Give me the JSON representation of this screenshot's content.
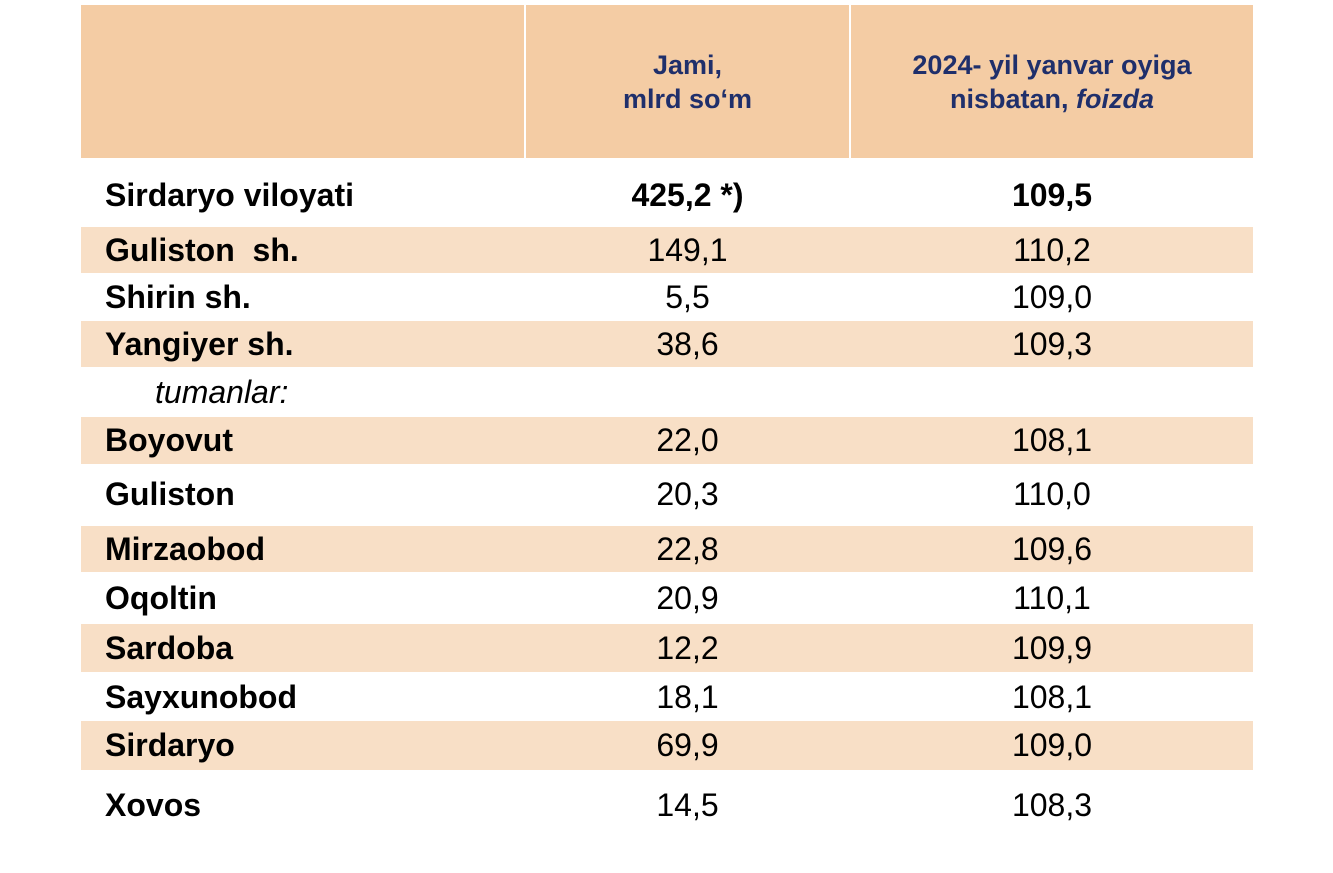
{
  "header": {
    "col_region": "",
    "col_total_line1": "Jami,",
    "col_total_line2": "mlrd so‘m",
    "col_percent_line1": "2024- yil yanvar oyiga",
    "col_percent_line2_plain": "nisbatan, ",
    "col_percent_line2_italic": "foizda"
  },
  "rows": [
    {
      "name": "Sirdaryo viloyati",
      "total": "425,2 *)",
      "percent": "109,5"
    },
    {
      "name": "Guliston  sh.",
      "total": "149,1",
      "percent": "110,2"
    },
    {
      "name": "Shirin sh.",
      "total": "5,5",
      "percent": "109,0"
    },
    {
      "name": "Yangiyer sh.",
      "total": "38,6",
      "percent": "109,3"
    },
    {
      "name": "tumanlar:",
      "total": "",
      "percent": ""
    },
    {
      "name": "Boyovut",
      "total": "22,0",
      "percent": "108,1"
    },
    {
      "name": "Guliston",
      "total": "20,3",
      "percent": "110,0"
    },
    {
      "name": "Mirzaobod",
      "total": "22,8",
      "percent": "109,6"
    },
    {
      "name": "Oqoltin",
      "total": "20,9",
      "percent": "110,1"
    },
    {
      "name": "Sardoba",
      "total": "12,2",
      "percent": "109,9"
    },
    {
      "name": "Sayxunobod",
      "total": "18,1",
      "percent": "108,1"
    },
    {
      "name": "Sirdaryo",
      "total": "69,9",
      "percent": "109,0"
    },
    {
      "name": "Xovos",
      "total": "14,5",
      "percent": "108,3"
    }
  ],
  "colors": {
    "header_bg": "#f4cca4",
    "header_text": "#1f2f6b",
    "row_shade": "#f8dfc6"
  }
}
